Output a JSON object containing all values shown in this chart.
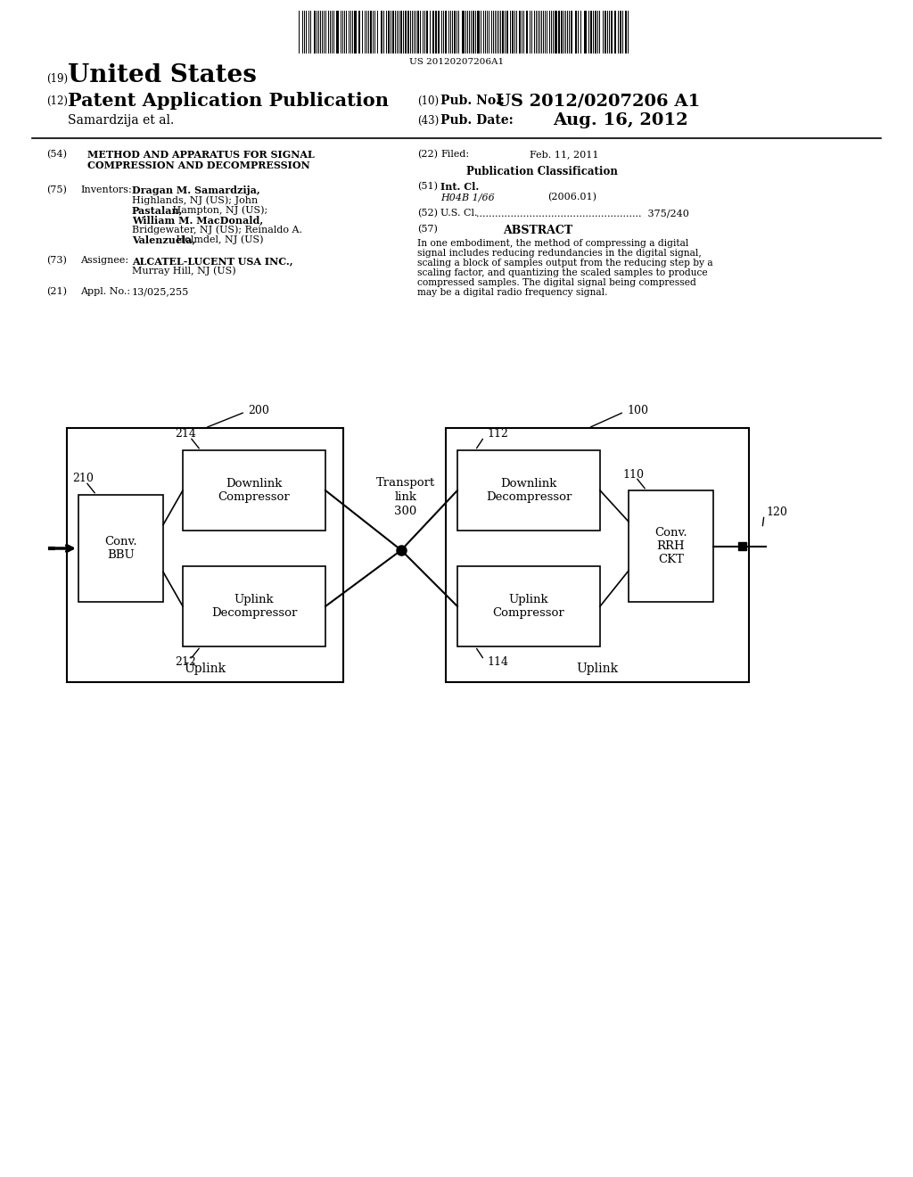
{
  "bg_color": "#ffffff",
  "barcode_text": "US 20120207206A1",
  "patent_number": "US 2012/0207206 A1",
  "pub_date": "Aug. 16, 2012",
  "country": "United States",
  "kind": "Patent Application Publication",
  "inventor_line": "Samardzija et al.",
  "pub_no_label": "Pub. No.:",
  "pub_date_label": "Pub. Date:",
  "section54_label": "(54)",
  "section54_title_line1": "METHOD AND APPARATUS FOR SIGNAL",
  "section54_title_line2": "COMPRESSION AND DECOMPRESSION",
  "section22_label": "(22)",
  "section22_filed": "Filed:",
  "section22_date": "Feb. 11, 2011",
  "pub_class_header": "Publication Classification",
  "section75_label": "(75)",
  "section75_name": "Inventors:",
  "section75_bold1": "Dragan M. Samardzija,",
  "section75_normal1": "Highlands, NJ (US); John",
  "section75_bold2": "Pastalan,",
  "section75_normal2": " Hampton, NJ (US);",
  "section75_bold3": "William M. MacDonald,",
  "section75_normal3": "Bridgewater, NJ (US); Reinaldo A.",
  "section75_bold4": "Valenzuela,",
  "section75_normal4": " Holmdel, NJ (US)",
  "section51_label": "(51)",
  "section51_name": "Int. Cl.",
  "section51_class": "H04B 1/66",
  "section51_year": "(2006.01)",
  "section52_label": "(52)",
  "section52_name": "U.S. Cl.",
  "section52_dots": ".....................................................",
  "section52_val": "375/240",
  "section57_label": "(57)",
  "section57_name": "ABSTRACT",
  "section57_text_lines": [
    "In one embodiment, the method of compressing a digital",
    "signal includes reducing redundancies in the digital signal,",
    "scaling a block of samples output from the reducing step by a",
    "scaling factor, and quantizing the scaled samples to produce",
    "compressed samples. The digital signal being compressed",
    "may be a digital radio frequency signal."
  ],
  "section73_label": "(73)",
  "section73_name": "Assignee:",
  "section73_text1": "ALCATEL-LUCENT USA INC.,",
  "section73_text2": "Murray Hill, NJ (US)",
  "section21_label": "(21)",
  "section21_name": "Appl. No.:",
  "section21_val": "13/025,255",
  "diagram": {
    "box200_label": "200",
    "box100_label": "100",
    "box210_label": "210",
    "box214_label": "214",
    "box212_label": "212",
    "box110_label": "110",
    "box112_label": "112",
    "box114_label": "114",
    "box120_label": "120",
    "transport_line1": "Transport",
    "transport_line2": "link",
    "transport_line3": "300",
    "conv_bbu_label": "Conv.\nBBU",
    "downlink_comp_label": "Downlink\nCompressor",
    "uplink_decomp_label": "Uplink\nDecompressor",
    "downlink_decomp_label": "Downlink\nDecompressor",
    "uplink_comp_label": "Uplink\nCompressor",
    "conv_rrh_label": "Conv.\nRRH\nCKT",
    "uplink_label_left": "Uplink",
    "uplink_label_right": "Uplink"
  }
}
